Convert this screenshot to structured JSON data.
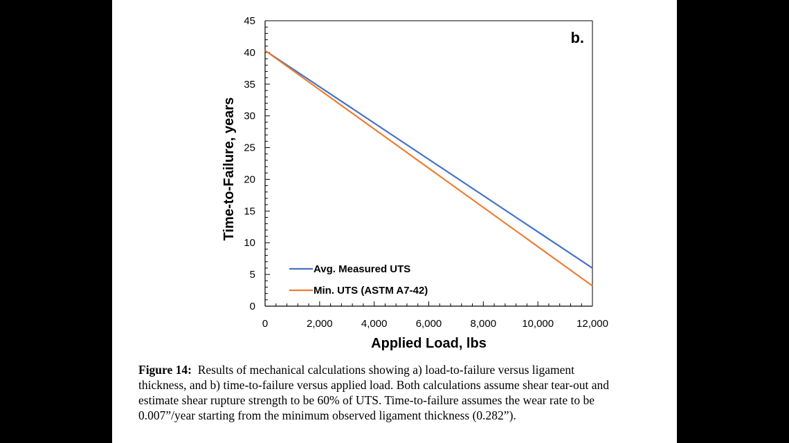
{
  "chart_data": {
    "type": "line",
    "panel_label": "b.",
    "xlabel": "Applied Load, lbs",
    "ylabel": "Time-to-Failure, years",
    "xlim": [
      0,
      12000
    ],
    "ylim": [
      0,
      45
    ],
    "x_ticks": [
      0,
      2000,
      4000,
      6000,
      8000,
      10000,
      12000
    ],
    "x_tick_labels": [
      "0",
      "2,000",
      "4,000",
      "6,000",
      "8,000",
      "10,000",
      "12,000"
    ],
    "y_ticks": [
      0,
      5,
      10,
      15,
      20,
      25,
      30,
      35,
      40,
      45
    ],
    "y_tick_labels": [
      "0",
      "5",
      "10",
      "15",
      "20",
      "25",
      "30",
      "35",
      "40",
      "45"
    ],
    "legend_position": "bottom-left",
    "grid": false,
    "series": [
      {
        "name": "Avg. Measured UTS",
        "color": "#4472C4",
        "x": [
          0,
          12000
        ],
        "y": [
          40.3,
          6.0
        ]
      },
      {
        "name": "Min. UTS (ASTM A7-42)",
        "color": "#ED7D31",
        "x": [
          0,
          12000
        ],
        "y": [
          40.3,
          3.2
        ]
      }
    ]
  },
  "caption": {
    "label": "Figure 14:",
    "lines": [
      "Results of mechanical calculations showing a) load-to-failure versus ligament",
      "thickness, and b) time-to-failure versus applied load.  Both calculations assume shear tear-out and",
      "estimate shear rupture strength to be 60% of UTS.  Time-to-failure assumes the wear rate to be",
      "0.007”/year starting from the minimum observed ligament thickness (0.282”)."
    ]
  }
}
